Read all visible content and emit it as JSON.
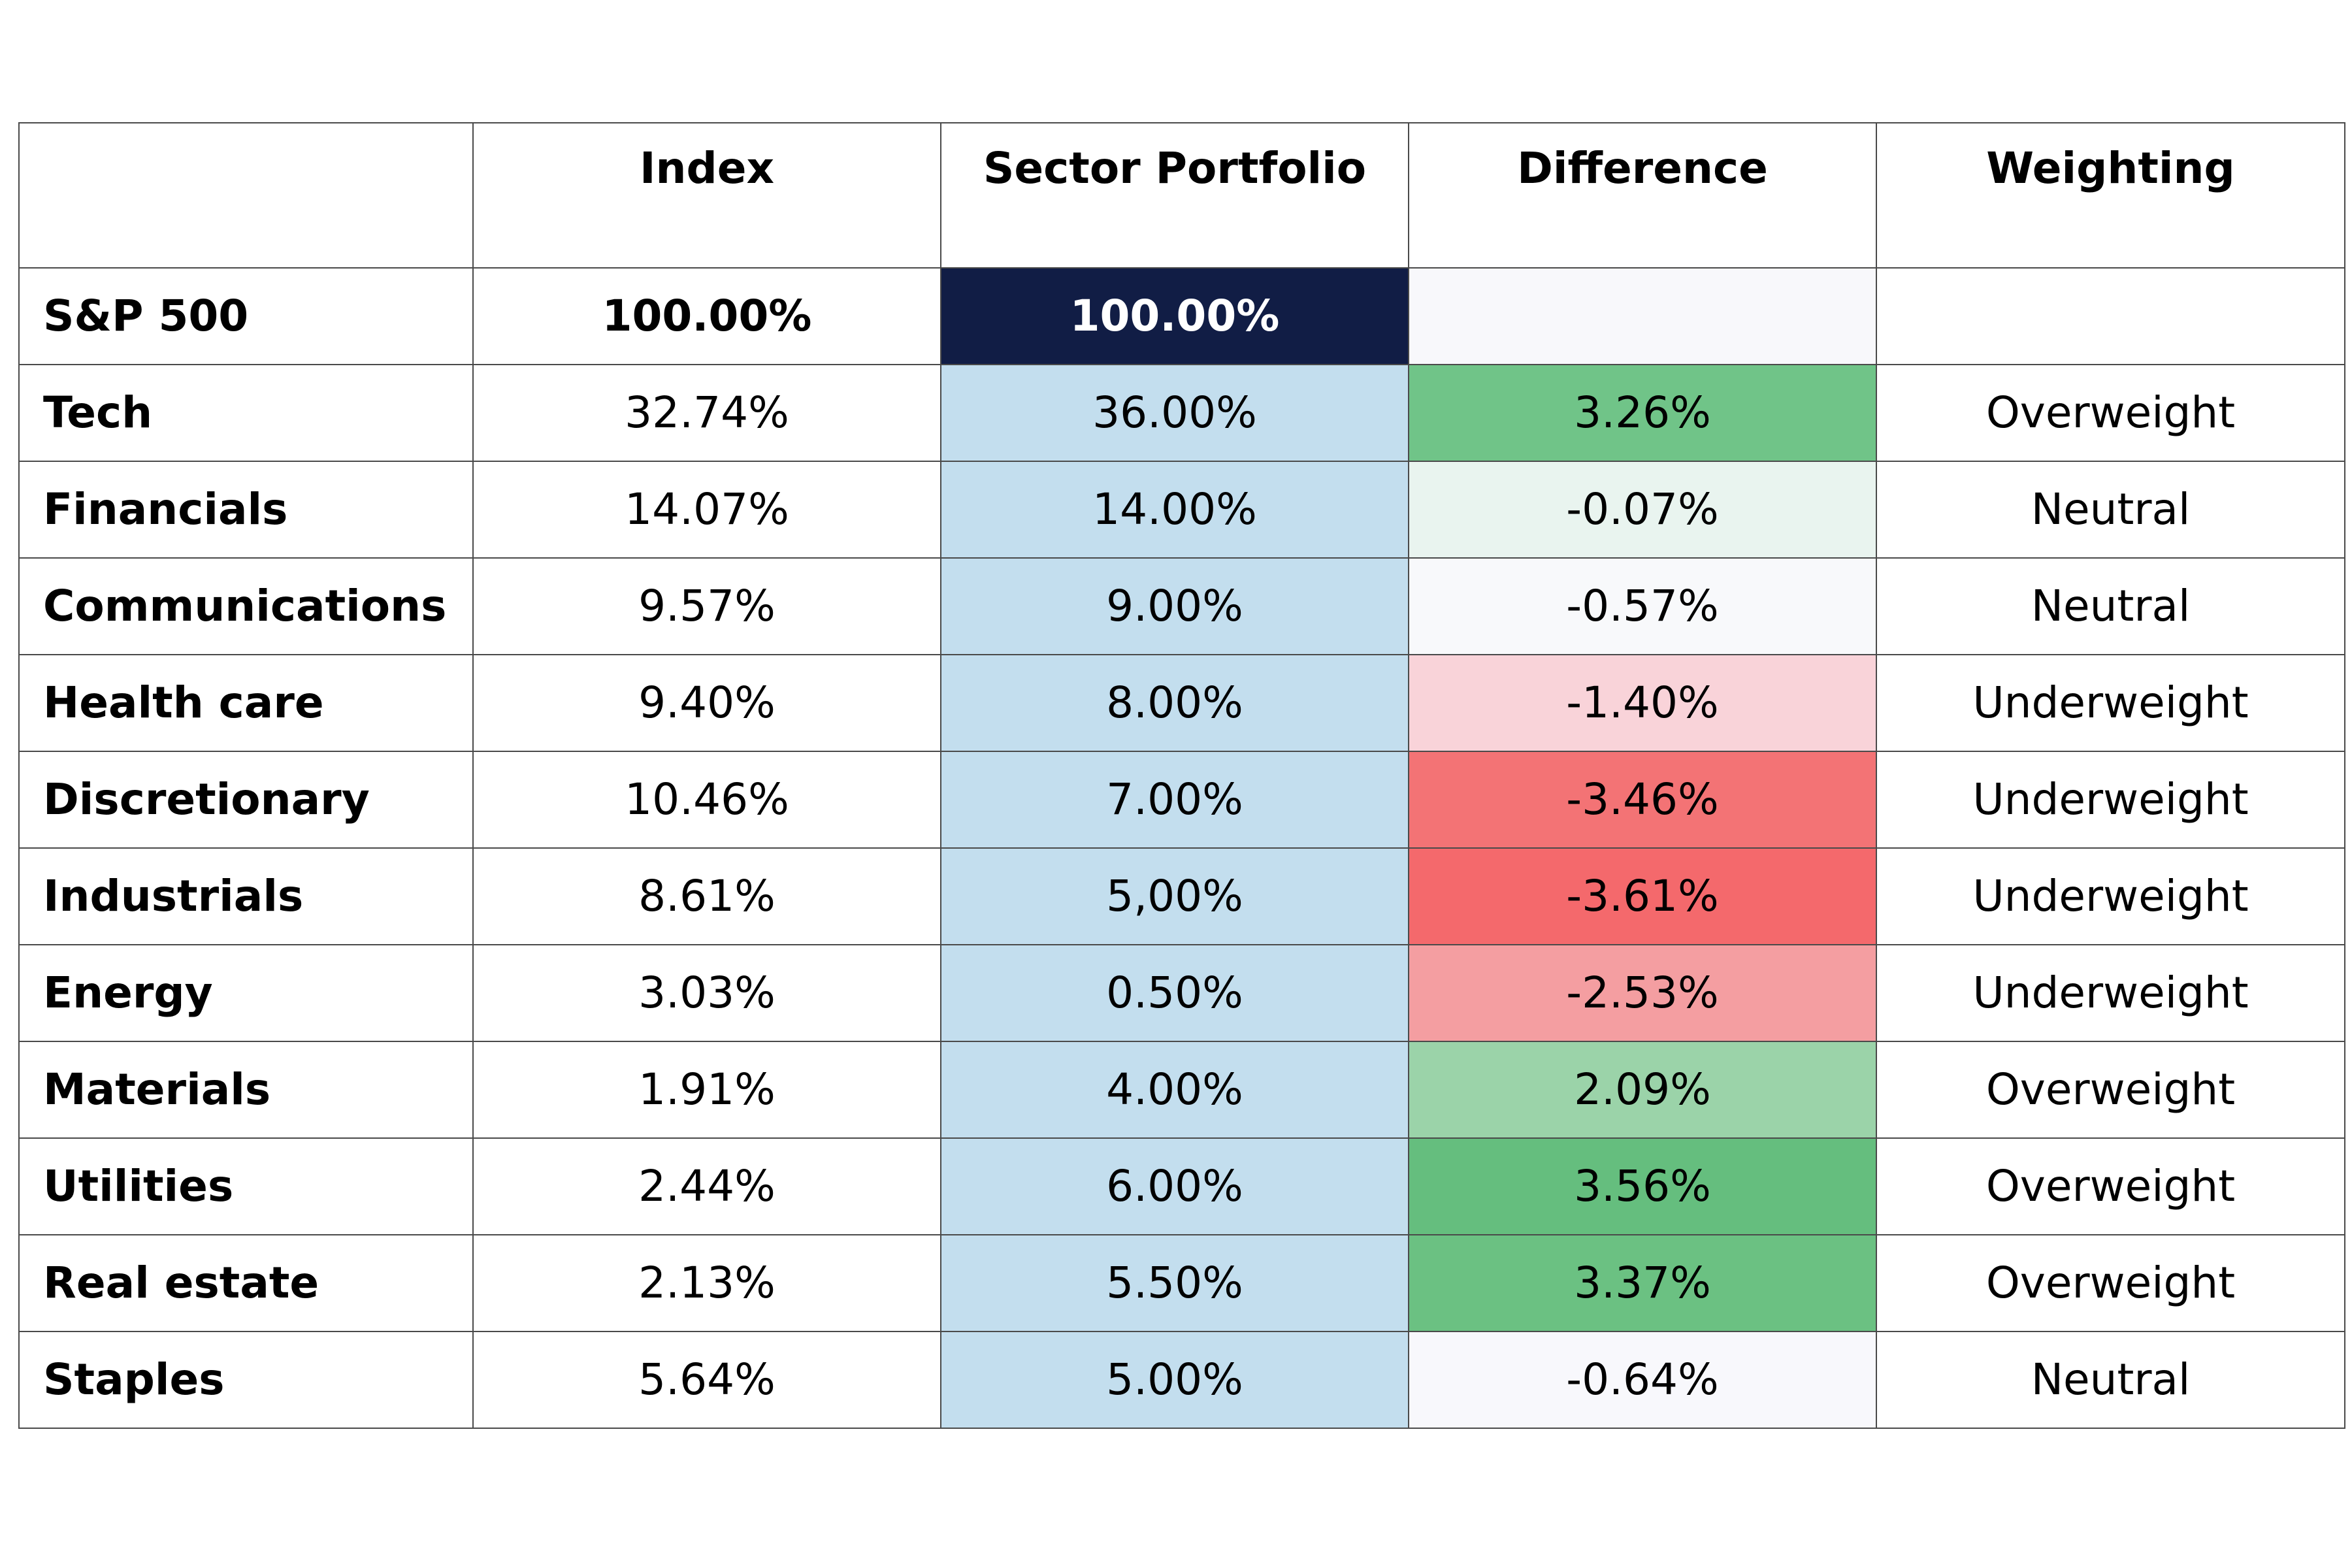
{
  "chart_data": {
    "type": "table",
    "columns": [
      "",
      "Index",
      "Sector Portfolio",
      "Difference",
      "Weighting"
    ],
    "total_row": {
      "label": "S&P 500",
      "index": "100.00%",
      "portfolio": "100.00%",
      "difference": "",
      "weighting": ""
    },
    "rows": [
      {
        "label": "Tech",
        "index": "32.74%",
        "portfolio": "36.00%",
        "difference": "3.26%",
        "weighting": "Overweight"
      },
      {
        "label": "Financials",
        "index": "14.07%",
        "portfolio": "14.00%",
        "difference": "-0.07%",
        "weighting": "Neutral"
      },
      {
        "label": "Communications",
        "index": "9.57%",
        "portfolio": "9.00%",
        "difference": "-0.57%",
        "weighting": "Neutral"
      },
      {
        "label": "Health care",
        "index": "9.40%",
        "portfolio": "8.00%",
        "difference": "-1.40%",
        "weighting": "Underweight"
      },
      {
        "label": "Discretionary",
        "index": "10.46%",
        "portfolio": "7.00%",
        "difference": "-3.46%",
        "weighting": "Underweight"
      },
      {
        "label": "Industrials",
        "index": "8.61%",
        "portfolio": "5,00%",
        "difference": "-3.61%",
        "weighting": "Underweight"
      },
      {
        "label": "Energy",
        "index": "3.03%",
        "portfolio": "0.50%",
        "difference": "-2.53%",
        "weighting": "Underweight"
      },
      {
        "label": "Materials",
        "index": "1.91%",
        "portfolio": "4.00%",
        "difference": "2.09%",
        "weighting": "Overweight"
      },
      {
        "label": "Utilities",
        "index": "2.44%",
        "portfolio": "6.00%",
        "difference": "3.56%",
        "weighting": "Overweight"
      },
      {
        "label": "Real estate",
        "index": "2.13%",
        "portfolio": "5.50%",
        "difference": "3.37%",
        "weighting": "Overweight"
      },
      {
        "label": "Staples",
        "index": "5.64%",
        "portfolio": "5.00%",
        "difference": "-0.64%",
        "weighting": "Neutral"
      }
    ]
  },
  "colors": {
    "total_portfolio_bg": "#111d45",
    "total_difference_bg": "#f8f8fb",
    "portfolio_bg": "#c3deee",
    "difference_bg": [
      "#70c488",
      "#e9f4ef",
      "#f8f9fb",
      "#f9d3d9",
      "#f37375",
      "#f4696c",
      "#f49ea1",
      "#9bd3a9",
      "#65be7e",
      "#6bc182",
      "#f8f8fc"
    ]
  }
}
